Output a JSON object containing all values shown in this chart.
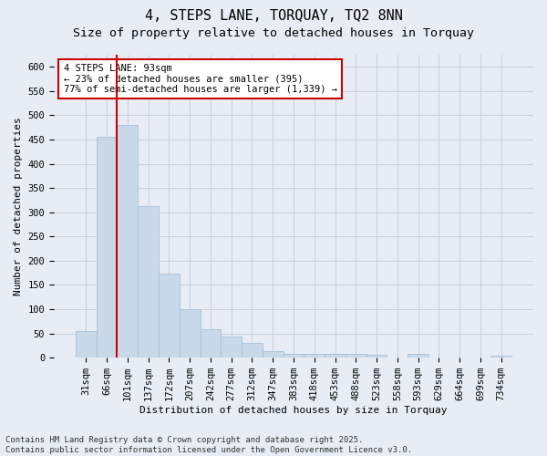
{
  "title_line1": "4, STEPS LANE, TORQUAY, TQ2 8NN",
  "title_line2": "Size of property relative to detached houses in Torquay",
  "xlabel": "Distribution of detached houses by size in Torquay",
  "ylabel": "Number of detached properties",
  "bar_labels": [
    "31sqm",
    "66sqm",
    "101sqm",
    "137sqm",
    "172sqm",
    "207sqm",
    "242sqm",
    "277sqm",
    "312sqm",
    "347sqm",
    "383sqm",
    "418sqm",
    "453sqm",
    "488sqm",
    "523sqm",
    "558sqm",
    "593sqm",
    "629sqm",
    "664sqm",
    "699sqm",
    "734sqm"
  ],
  "bar_values": [
    55,
    455,
    480,
    312,
    173,
    100,
    58,
    43,
    30,
    14,
    8,
    8,
    8,
    8,
    6,
    0,
    8,
    0,
    0,
    0,
    4
  ],
  "bar_color": "#c9d9ea",
  "bar_edgecolor": "#a8c0d6",
  "grid_color": "#c5cfe0",
  "background_color": "#e8edf5",
  "vline_x": 1.5,
  "vline_color": "#cc0000",
  "annotation_text": "4 STEPS LANE: 93sqm\n← 23% of detached houses are smaller (395)\n77% of semi-detached houses are larger (1,339) →",
  "annotation_box_facecolor": "#ffffff",
  "annotation_box_edgecolor": "#cc0000",
  "ylim": [
    0,
    625
  ],
  "yticks": [
    0,
    50,
    100,
    150,
    200,
    250,
    300,
    350,
    400,
    450,
    500,
    550,
    600
  ],
  "footnote": "Contains HM Land Registry data © Crown copyright and database right 2025.\nContains public sector information licensed under the Open Government Licence v3.0.",
  "title_fontsize": 11,
  "subtitle_fontsize": 9.5,
  "axis_label_fontsize": 8,
  "tick_fontsize": 7.5,
  "annotation_fontsize": 7.5,
  "footnote_fontsize": 6.5
}
